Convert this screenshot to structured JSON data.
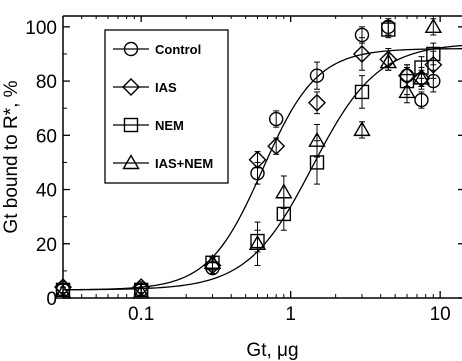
{
  "chart_data": {
    "type": "scatter",
    "xlabel": "Gt, μg",
    "ylabel": "Gt bound to R*, %",
    "xscale": "log",
    "xlim": [
      0.03,
      14
    ],
    "ylim": [
      0,
      104
    ],
    "xticks": [
      {
        "value": 0.1,
        "label": "0.1"
      },
      {
        "value": 1,
        "label": "1"
      },
      {
        "value": 10,
        "label": "10"
      }
    ],
    "yticks": [
      {
        "value": 0,
        "label": "0"
      },
      {
        "value": 20,
        "label": "20"
      },
      {
        "value": 40,
        "label": "40"
      },
      {
        "value": 60,
        "label": "60"
      },
      {
        "value": 80,
        "label": "80"
      },
      {
        "value": 100,
        "label": "100"
      }
    ],
    "legend_position": "top-left",
    "series": [
      {
        "name": "Control",
        "marker": "circle",
        "points": [
          {
            "x": 0.03,
            "y": 3,
            "err": 2
          },
          {
            "x": 0.1,
            "y": 3,
            "err": 2
          },
          {
            "x": 0.3,
            "y": 11,
            "err": 2
          },
          {
            "x": 0.6,
            "y": 46,
            "err": 4
          },
          {
            "x": 0.8,
            "y": 66,
            "err": 3
          },
          {
            "x": 1.5,
            "y": 82,
            "err": 5
          },
          {
            "x": 3.0,
            "y": 97,
            "err": 3
          },
          {
            "x": 4.5,
            "y": 100,
            "err": 3
          },
          {
            "x": 6.0,
            "y": 82,
            "err": 4
          },
          {
            "x": 7.5,
            "y": 73,
            "err": 3
          },
          {
            "x": 9.0,
            "y": 80,
            "err": 4
          }
        ]
      },
      {
        "name": "IAS",
        "marker": "diamond",
        "points": [
          {
            "x": 0.03,
            "y": 4,
            "err": 2
          },
          {
            "x": 0.1,
            "y": 4,
            "err": 2
          },
          {
            "x": 0.3,
            "y": 12,
            "err": 2
          },
          {
            "x": 0.6,
            "y": 51,
            "err": 3
          },
          {
            "x": 0.8,
            "y": 56,
            "err": 3
          },
          {
            "x": 1.5,
            "y": 72,
            "err": 4
          },
          {
            "x": 3.0,
            "y": 90,
            "err": 6
          },
          {
            "x": 4.5,
            "y": 88,
            "err": 4
          },
          {
            "x": 6.0,
            "y": 82,
            "err": 4
          },
          {
            "x": 7.5,
            "y": 81,
            "err": 3
          },
          {
            "x": 9.0,
            "y": 86,
            "err": 5
          }
        ]
      },
      {
        "name": "NEM",
        "marker": "square",
        "points": [
          {
            "x": 0.03,
            "y": 3,
            "err": 2
          },
          {
            "x": 0.1,
            "y": 3,
            "err": 2
          },
          {
            "x": 0.3,
            "y": 13,
            "err": 2
          },
          {
            "x": 0.6,
            "y": 21,
            "err": 4
          },
          {
            "x": 0.9,
            "y": 31,
            "err": 6
          },
          {
            "x": 1.5,
            "y": 50,
            "err": 8
          },
          {
            "x": 3.0,
            "y": 76,
            "err": 6
          },
          {
            "x": 4.5,
            "y": 99,
            "err": 3
          },
          {
            "x": 6.0,
            "y": 80,
            "err": 5
          },
          {
            "x": 7.5,
            "y": 85,
            "err": 4
          },
          {
            "x": 9.0,
            "y": 90,
            "err": 4
          }
        ]
      },
      {
        "name": "IAS+NEM",
        "marker": "triangle",
        "points": [
          {
            "x": 0.03,
            "y": 2,
            "err": 2
          },
          {
            "x": 0.1,
            "y": 2,
            "err": 2
          },
          {
            "x": 0.3,
            "y": 13,
            "err": 2
          },
          {
            "x": 0.6,
            "y": 20,
            "err": 8
          },
          {
            "x": 0.9,
            "y": 39,
            "err": 6
          },
          {
            "x": 1.5,
            "y": 58,
            "err": 6
          },
          {
            "x": 3.0,
            "y": 62,
            "err": 3
          },
          {
            "x": 4.5,
            "y": 87,
            "err": 3
          },
          {
            "x": 6.0,
            "y": 76,
            "err": 4
          },
          {
            "x": 7.5,
            "y": 81,
            "err": 4
          },
          {
            "x": 9.0,
            "y": 100,
            "err": 3
          }
        ]
      }
    ],
    "fit_curves": [
      {
        "top": 92,
        "bottom": 3,
        "ec50": 0.65,
        "hill": 2.4
      },
      {
        "top": 94,
        "bottom": 3,
        "ec50": 1.4,
        "hill": 2.0
      }
    ]
  }
}
